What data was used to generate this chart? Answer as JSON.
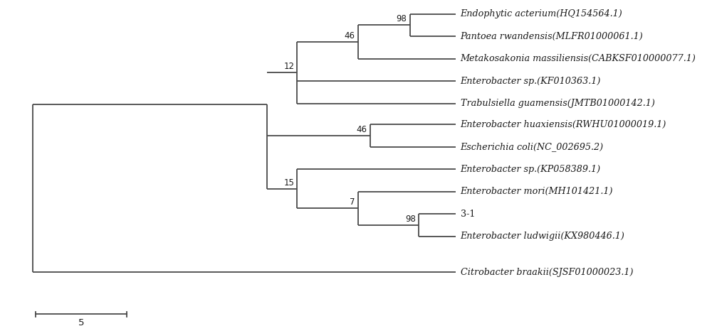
{
  "italic_parts": [
    [
      "Endophytic acterium",
      "(HQ154564.1)"
    ],
    [
      "Pantoea rwandensis",
      "(MLFR01000061.1)"
    ],
    [
      "Metakosakonia massiliensis",
      "(CABKSF010000077.1)"
    ],
    [
      "Enterobacter sp.",
      "(KF010363.1)"
    ],
    [
      "Trabulsiella guamensis",
      "(JMTB01000142.1)"
    ],
    [
      "Enterobacter huaxiensis",
      "(RWHU01000019.1)"
    ],
    [
      "Escherichia coli",
      "(NC_002695.2)"
    ],
    [
      "Enterobacter sp.",
      "(KP058389.1)"
    ],
    [
      "Enterobacter mori",
      "(MH101421.1)"
    ],
    [
      "3-1",
      ""
    ],
    [
      "Enterobacter ludwigii",
      "(KX980446.1)"
    ],
    [
      "Citrobacter braakii",
      "(SJSF01000023.1)"
    ]
  ],
  "line_color": "#4a4a4a",
  "text_color": "#1a1a1a",
  "bg_color": "#ffffff",
  "scalebar_label": "5",
  "lw": 1.3,
  "label_fontsize": 9.2,
  "bs_fontsize": 8.5
}
